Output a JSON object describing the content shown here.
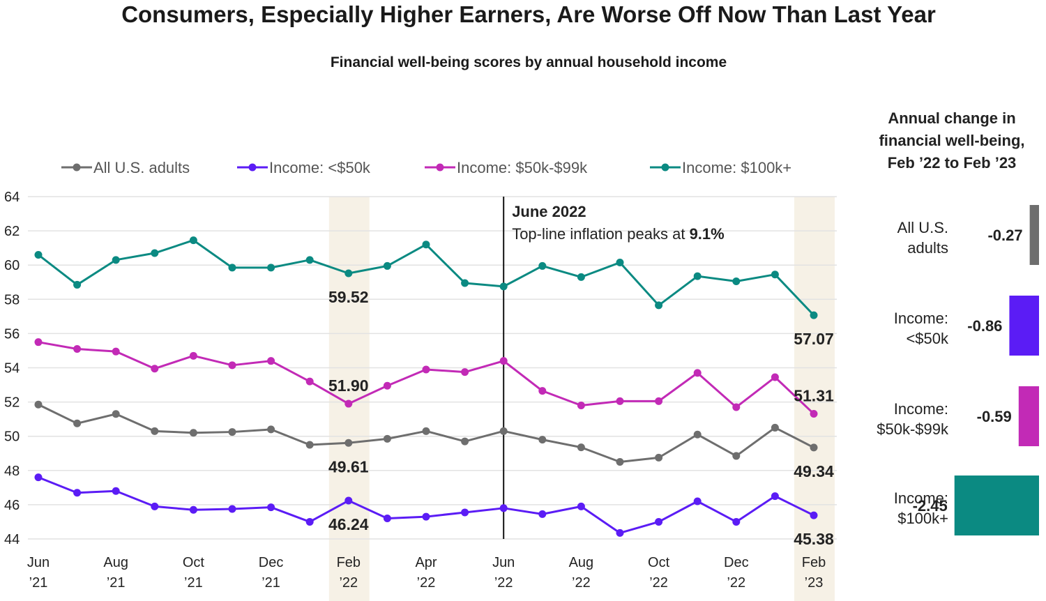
{
  "title": "Consumers, Especially Higher Earners, Are Worse Off Now Than Last Year",
  "subtitle": "Financial well-being scores by annual household income",
  "chart_data": [
    {
      "type": "line",
      "ylim": [
        44,
        64
      ],
      "yticks": [
        44,
        46,
        48,
        50,
        52,
        54,
        56,
        58,
        60,
        62,
        64
      ],
      "grid": true,
      "legend_position": "top",
      "x": [
        "Jun 2021",
        "Jul 2021",
        "Aug 2021",
        "Sep 2021",
        "Oct 2021",
        "Nov 2021",
        "Dec 2021",
        "Jan 2022",
        "Feb 2022",
        "Mar 2022",
        "Apr 2022",
        "May 2022",
        "Jun 2022",
        "Jul 2022",
        "Aug 2022",
        "Sep 2022",
        "Oct 2022",
        "Nov 2022",
        "Dec 2022",
        "Jan 2023",
        "Feb 2023"
      ],
      "x_tick_labels": [
        {
          "month": "Jun",
          "year": "’21"
        },
        {
          "month": "Aug",
          "year": "’21"
        },
        {
          "month": "Oct",
          "year": "’21"
        },
        {
          "month": "Dec",
          "year": "’21"
        },
        {
          "month": "Feb",
          "year": "’22"
        },
        {
          "month": "Apr",
          "year": "’22"
        },
        {
          "month": "Jun",
          "year": "’22"
        },
        {
          "month": "Aug",
          "year": "’22"
        },
        {
          "month": "Oct",
          "year": "’22"
        },
        {
          "month": "Dec",
          "year": "’22"
        },
        {
          "month": "Feb",
          "year": "’23"
        }
      ],
      "series": [
        {
          "name": "All U.S. adults",
          "color": "#6e6e6e",
          "values": [
            51.85,
            50.75,
            51.3,
            50.3,
            50.2,
            50.25,
            50.4,
            49.5,
            49.61,
            49.85,
            50.3,
            49.7,
            50.3,
            49.8,
            49.35,
            48.5,
            48.75,
            50.1,
            48.85,
            50.5,
            49.34
          ]
        },
        {
          "name": "Income: <$50k",
          "color": "#5b1cf5",
          "values": [
            47.6,
            46.7,
            46.8,
            45.9,
            45.7,
            45.75,
            45.85,
            45.0,
            46.24,
            45.2,
            45.3,
            45.55,
            45.8,
            45.45,
            45.9,
            44.35,
            45.0,
            46.2,
            45.0,
            46.5,
            45.38
          ]
        },
        {
          "name": "Income: $50k-$99k",
          "color": "#c22ab6",
          "values": [
            55.5,
            55.1,
            54.95,
            53.95,
            54.7,
            54.15,
            54.4,
            53.2,
            51.9,
            52.95,
            53.9,
            53.75,
            54.4,
            52.65,
            51.8,
            52.05,
            52.05,
            53.7,
            51.7,
            53.45,
            51.31
          ]
        },
        {
          "name": "Income: $100k+",
          "color": "#0b8a82",
          "values": [
            60.6,
            58.85,
            60.3,
            60.7,
            61.45,
            59.85,
            59.85,
            60.3,
            59.52,
            59.95,
            61.2,
            58.95,
            58.75,
            59.95,
            59.3,
            60.15,
            57.65,
            59.35,
            59.05,
            59.45,
            57.07
          ]
        }
      ],
      "highlight_bands": [
        "Feb 2022",
        "Feb 2023"
      ],
      "annotation": {
        "x": "Jun 2022",
        "title": "June 2022",
        "text_prefix": "Top-line inflation peaks at ",
        "text_value": "9.1%"
      },
      "point_labels": [
        {
          "series": 3,
          "index": 8,
          "text": "59.52",
          "pos": "below"
        },
        {
          "series": 2,
          "index": 8,
          "text": "51.90",
          "pos": "above"
        },
        {
          "series": 0,
          "index": 8,
          "text": "49.61",
          "pos": "below"
        },
        {
          "series": 1,
          "index": 8,
          "text": "46.24",
          "pos": "below"
        },
        {
          "series": 3,
          "index": 20,
          "text": "57.07",
          "pos": "below"
        },
        {
          "series": 2,
          "index": 20,
          "text": "51.31",
          "pos": "above"
        },
        {
          "series": 0,
          "index": 20,
          "text": "49.34",
          "pos": "below"
        },
        {
          "series": 1,
          "index": 20,
          "text": "45.38",
          "pos": "below"
        }
      ]
    },
    {
      "type": "bar",
      "title_lines": [
        "Annual change in",
        "financial well-being,",
        "Feb ’22 to Feb ’23"
      ],
      "categories": [
        [
          "All U.S.",
          "adults"
        ],
        [
          "Income:",
          "<$50k"
        ],
        [
          "Income:",
          "$50k-$99k"
        ],
        [
          "Income:",
          "$100k+"
        ]
      ],
      "values": [
        -0.27,
        -0.86,
        -0.59,
        -2.45
      ],
      "value_labels": [
        "-0.27",
        "-0.86",
        "-0.59",
        "-2.45"
      ],
      "colors": [
        "#6e6e6e",
        "#5b1cf5",
        "#c22ab6",
        "#0b8a82"
      ]
    }
  ]
}
